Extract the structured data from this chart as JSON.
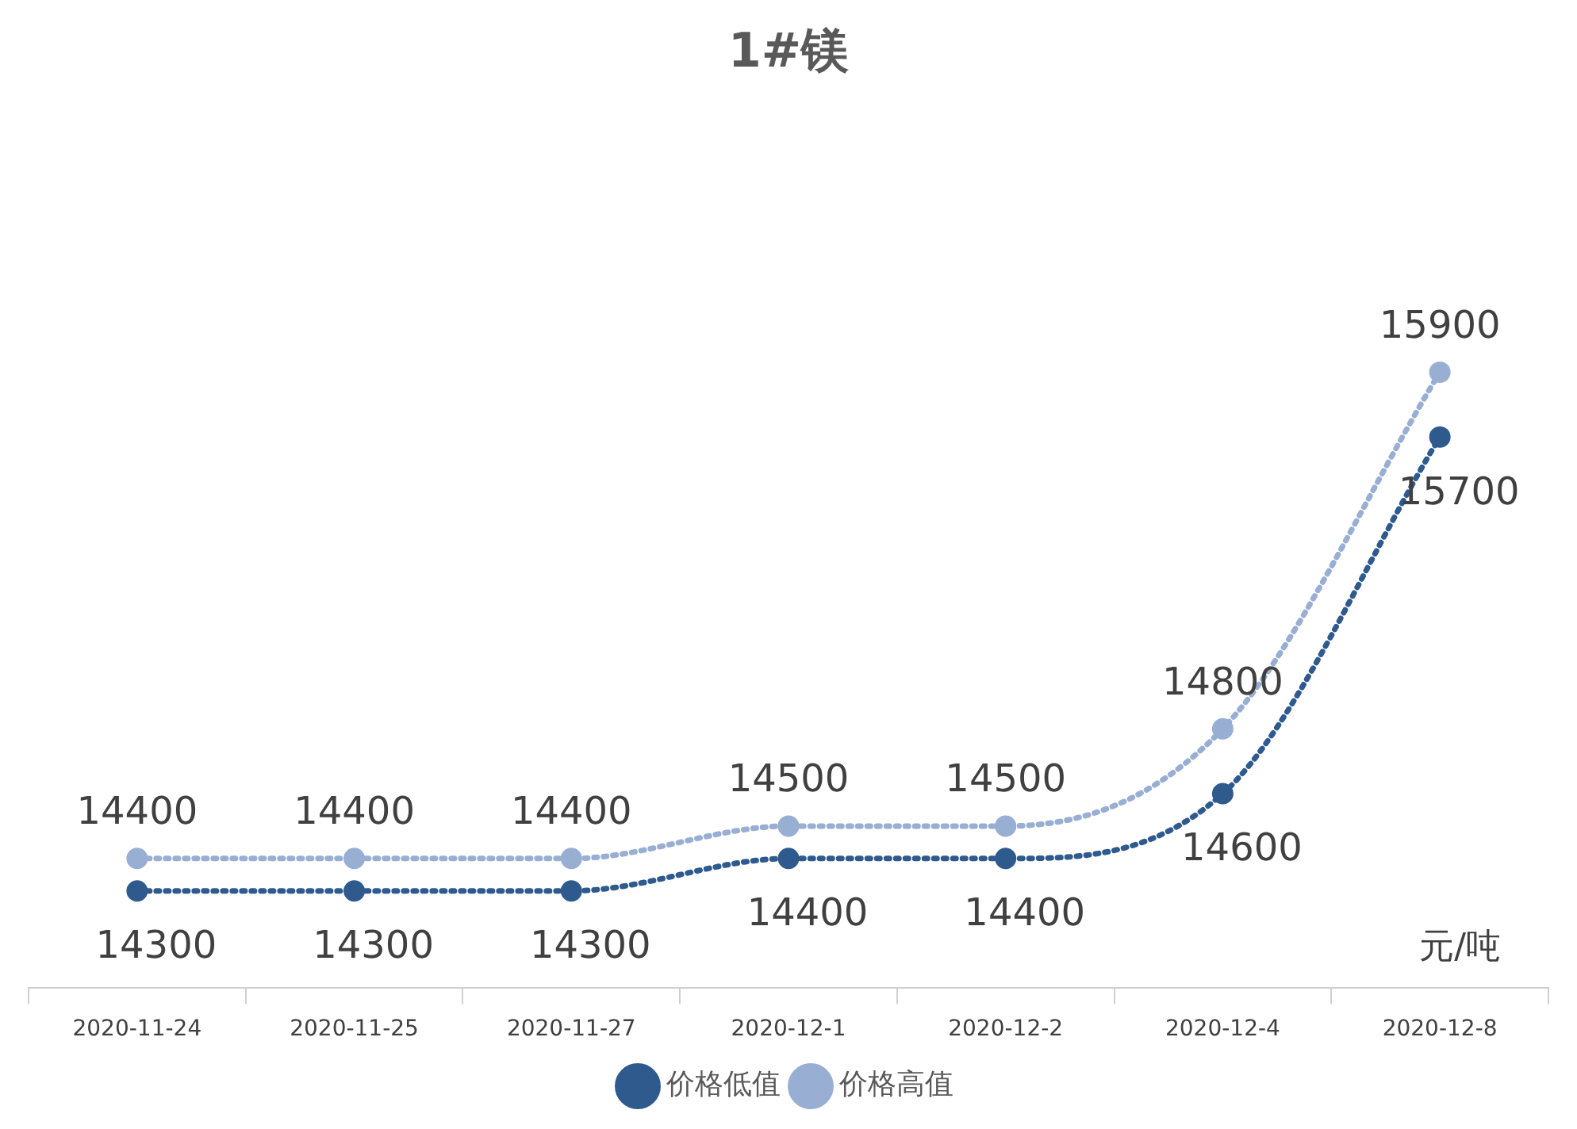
{
  "chart_data": {
    "type": "line",
    "title": "1#镁",
    "categories": [
      "2020-11-24",
      "2020-11-25",
      "2020-11-27",
      "2020-12-1",
      "2020-12-2",
      "2020-12-4",
      "2020-12-8"
    ],
    "series": [
      {
        "name": "价格低值",
        "color": "#2e5a8e",
        "values": [
          14300,
          14300,
          14300,
          14400,
          14400,
          14600,
          15700
        ]
      },
      {
        "name": "价格高值",
        "color": "#98aed2",
        "values": [
          14400,
          14400,
          14400,
          14500,
          14500,
          14800,
          15900
        ]
      }
    ],
    "annotations": [
      "元/吨"
    ],
    "data_labels": true,
    "legend": "bottom",
    "marker": "circle",
    "line_style": "dotted"
  }
}
